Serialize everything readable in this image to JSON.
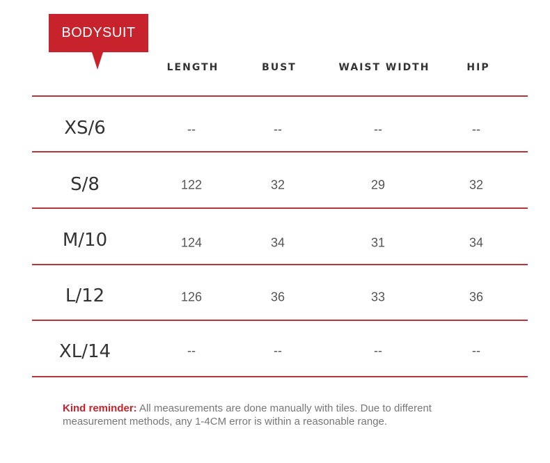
{
  "label": "BODYSUIT",
  "colors": {
    "accent": "#c8232c",
    "divider": "#b8343a"
  },
  "headers": [
    "LENGTH",
    "BUST",
    "WAIST WIDTH",
    "HIP"
  ],
  "rows": [
    {
      "size": "XS/6",
      "values": [
        "--",
        "--",
        "--",
        "--"
      ]
    },
    {
      "size": "S/8",
      "values": [
        "122",
        "32",
        "29",
        "32"
      ]
    },
    {
      "size": "M/10",
      "values": [
        "124",
        "34",
        "31",
        "34"
      ]
    },
    {
      "size": "L/12",
      "values": [
        "126",
        "36",
        "33",
        "36"
      ]
    },
    {
      "size": "XL/14",
      "values": [
        "--",
        "--",
        "--",
        "--"
      ]
    }
  ],
  "note": {
    "label": "Kind reminder:",
    "line1": " All measurements are done manually with tiles. Due to different",
    "line2": " measurement methods, any 1-4CM error is within a reasonable range."
  }
}
